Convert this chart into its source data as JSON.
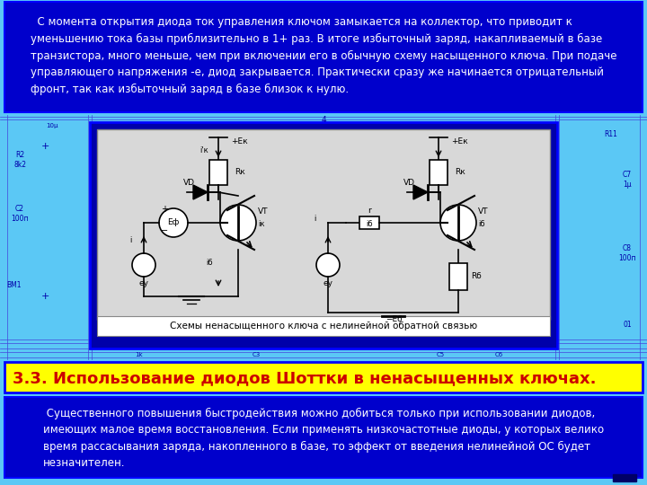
{
  "bg_color": "#5bc8f5",
  "top_box_bg": "#0000cc",
  "top_box_text_color": "#ffffff",
  "top_box_text": "  С момента открытия диода ток управления ключом замыкается на коллектор, что приводит к\nуменьшению тока базы приблизительно в 1+ раз. В итоге избыточный заряд, накапливаемый в базе\nтранзистора, много меньше, чем при включении его в обычную схему насыщенного ключа. При подаче\nуправляющего напряжения -е, диод закрывается. Практически сразу же начинается отрицательный\nфронт, так как избыточный заряд в базе близок к нулю.",
  "circuit_box_bg": "#0000aa",
  "circuit_box_border": "#0000ff",
  "circuit_bg_color": "#d8d8d8",
  "circuit_caption": "Схемы ненасыщенного ключа с нелинейной обратной связью",
  "circuit_caption_color": "#000000",
  "yellow_box_bg": "#ffff00",
  "yellow_box_border": "#0000ff",
  "yellow_text": "3.3. Использование диодов Шоттки в ненасыщенных ключах.",
  "yellow_text_color": "#cc0000",
  "bottom_box_bg": "#0000cc",
  "bottom_box_text_color": "#ffffff",
  "bottom_box_text": " Существенного повышения быстродействия можно добиться только при использовании диодов,\nимеющих малое время восстановления. Если применять низкочастотные диоды, у которых велико\nвремя рассасывания заряда, накопленного в базе, то эффект от введения нелинейной ОС будет\nнезначителен.",
  "dim_color": "#4444dd",
  "dim_text_color": "#0000aa",
  "lc": 215,
  "rc": 460
}
